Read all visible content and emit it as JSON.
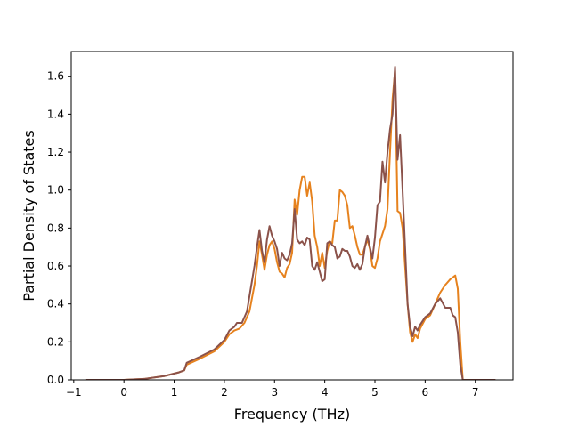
{
  "chart_data": {
    "type": "line",
    "title": "",
    "xlabel": "Frequency (THz)",
    "ylabel": "Partial Density of States",
    "xlim": [
      -1.05,
      7.75
    ],
    "ylim": [
      0.0,
      1.73
    ],
    "xticks": [
      -1,
      0,
      1,
      2,
      3,
      4,
      5,
      6,
      7
    ],
    "xtick_labels": [
      "−1",
      "0",
      "1",
      "2",
      "3",
      "4",
      "5",
      "6",
      "7"
    ],
    "yticks": [
      0.0,
      0.2,
      0.4,
      0.6,
      0.8,
      1.0,
      1.2,
      1.4,
      1.6
    ],
    "ytick_labels": [
      "0.0",
      "0.2",
      "0.4",
      "0.6",
      "0.8",
      "1.0",
      "1.2",
      "1.4",
      "1.6"
    ],
    "grid": false,
    "legend": "none",
    "series": [
      {
        "color": "#e6821e",
        "points": [
          [
            -0.75,
            0.0
          ],
          [
            0.0,
            0.0
          ],
          [
            0.4,
            0.005
          ],
          [
            0.8,
            0.02
          ],
          [
            1.1,
            0.04
          ],
          [
            1.2,
            0.05
          ],
          [
            1.25,
            0.08
          ],
          [
            1.5,
            0.11
          ],
          [
            1.8,
            0.15
          ],
          [
            2.0,
            0.2
          ],
          [
            2.1,
            0.24
          ],
          [
            2.2,
            0.26
          ],
          [
            2.3,
            0.27
          ],
          [
            2.4,
            0.3
          ],
          [
            2.5,
            0.36
          ],
          [
            2.6,
            0.5
          ],
          [
            2.65,
            0.6
          ],
          [
            2.7,
            0.73
          ],
          [
            2.75,
            0.66
          ],
          [
            2.8,
            0.58
          ],
          [
            2.85,
            0.66
          ],
          [
            2.9,
            0.71
          ],
          [
            2.95,
            0.73
          ],
          [
            3.0,
            0.69
          ],
          [
            3.05,
            0.62
          ],
          [
            3.1,
            0.57
          ],
          [
            3.15,
            0.56
          ],
          [
            3.2,
            0.54
          ],
          [
            3.25,
            0.59
          ],
          [
            3.3,
            0.61
          ],
          [
            3.35,
            0.67
          ],
          [
            3.4,
            0.95
          ],
          [
            3.45,
            0.87
          ],
          [
            3.5,
            1.0
          ],
          [
            3.55,
            1.07
          ],
          [
            3.6,
            1.07
          ],
          [
            3.65,
            0.97
          ],
          [
            3.7,
            1.04
          ],
          [
            3.75,
            0.94
          ],
          [
            3.8,
            0.76
          ],
          [
            3.85,
            0.7
          ],
          [
            3.9,
            0.6
          ],
          [
            3.95,
            0.67
          ],
          [
            4.0,
            0.59
          ],
          [
            4.05,
            0.68
          ],
          [
            4.1,
            0.73
          ],
          [
            4.15,
            0.72
          ],
          [
            4.2,
            0.84
          ],
          [
            4.25,
            0.84
          ],
          [
            4.3,
            1.0
          ],
          [
            4.35,
            0.99
          ],
          [
            4.4,
            0.97
          ],
          [
            4.45,
            0.92
          ],
          [
            4.5,
            0.8
          ],
          [
            4.55,
            0.81
          ],
          [
            4.6,
            0.76
          ],
          [
            4.65,
            0.7
          ],
          [
            4.7,
            0.66
          ],
          [
            4.75,
            0.66
          ],
          [
            4.8,
            0.7
          ],
          [
            4.85,
            0.74
          ],
          [
            4.9,
            0.69
          ],
          [
            4.95,
            0.6
          ],
          [
            5.0,
            0.59
          ],
          [
            5.05,
            0.64
          ],
          [
            5.1,
            0.73
          ],
          [
            5.15,
            0.77
          ],
          [
            5.2,
            0.81
          ],
          [
            5.25,
            0.9
          ],
          [
            5.3,
            1.2
          ],
          [
            5.35,
            1.48
          ],
          [
            5.4,
            1.63
          ],
          [
            5.45,
            0.89
          ],
          [
            5.5,
            0.88
          ],
          [
            5.55,
            0.8
          ],
          [
            5.6,
            0.6
          ],
          [
            5.65,
            0.4
          ],
          [
            5.7,
            0.25
          ],
          [
            5.75,
            0.2
          ],
          [
            5.8,
            0.24
          ],
          [
            5.85,
            0.22
          ],
          [
            5.9,
            0.27
          ],
          [
            6.0,
            0.32
          ],
          [
            6.1,
            0.34
          ],
          [
            6.2,
            0.4
          ],
          [
            6.3,
            0.46
          ],
          [
            6.4,
            0.5
          ],
          [
            6.5,
            0.53
          ],
          [
            6.6,
            0.55
          ],
          [
            6.65,
            0.48
          ],
          [
            6.7,
            0.2
          ],
          [
            6.75,
            0.0
          ],
          [
            7.4,
            0.0
          ]
        ]
      },
      {
        "color": "#8b524a",
        "points": [
          [
            -0.75,
            0.0
          ],
          [
            0.0,
            0.0
          ],
          [
            0.4,
            0.005
          ],
          [
            0.8,
            0.02
          ],
          [
            1.1,
            0.04
          ],
          [
            1.2,
            0.05
          ],
          [
            1.25,
            0.09
          ],
          [
            1.5,
            0.12
          ],
          [
            1.8,
            0.16
          ],
          [
            2.0,
            0.21
          ],
          [
            2.1,
            0.26
          ],
          [
            2.2,
            0.28
          ],
          [
            2.25,
            0.3
          ],
          [
            2.35,
            0.3
          ],
          [
            2.45,
            0.36
          ],
          [
            2.55,
            0.52
          ],
          [
            2.6,
            0.6
          ],
          [
            2.65,
            0.7
          ],
          [
            2.7,
            0.79
          ],
          [
            2.75,
            0.68
          ],
          [
            2.8,
            0.62
          ],
          [
            2.85,
            0.74
          ],
          [
            2.9,
            0.81
          ],
          [
            2.95,
            0.76
          ],
          [
            3.0,
            0.73
          ],
          [
            3.05,
            0.69
          ],
          [
            3.1,
            0.6
          ],
          [
            3.15,
            0.67
          ],
          [
            3.2,
            0.64
          ],
          [
            3.25,
            0.63
          ],
          [
            3.3,
            0.66
          ],
          [
            3.35,
            0.72
          ],
          [
            3.4,
            0.9
          ],
          [
            3.45,
            0.74
          ],
          [
            3.5,
            0.72
          ],
          [
            3.55,
            0.73
          ],
          [
            3.6,
            0.71
          ],
          [
            3.65,
            0.75
          ],
          [
            3.7,
            0.74
          ],
          [
            3.75,
            0.6
          ],
          [
            3.8,
            0.58
          ],
          [
            3.85,
            0.62
          ],
          [
            3.9,
            0.57
          ],
          [
            3.95,
            0.52
          ],
          [
            4.0,
            0.53
          ],
          [
            4.05,
            0.72
          ],
          [
            4.1,
            0.73
          ],
          [
            4.15,
            0.71
          ],
          [
            4.2,
            0.7
          ],
          [
            4.25,
            0.64
          ],
          [
            4.3,
            0.65
          ],
          [
            4.35,
            0.69
          ],
          [
            4.4,
            0.68
          ],
          [
            4.45,
            0.68
          ],
          [
            4.5,
            0.65
          ],
          [
            4.55,
            0.6
          ],
          [
            4.6,
            0.59
          ],
          [
            4.65,
            0.61
          ],
          [
            4.7,
            0.58
          ],
          [
            4.75,
            0.61
          ],
          [
            4.8,
            0.7
          ],
          [
            4.85,
            0.76
          ],
          [
            4.9,
            0.7
          ],
          [
            4.95,
            0.64
          ],
          [
            5.0,
            0.75
          ],
          [
            5.05,
            0.92
          ],
          [
            5.1,
            0.94
          ],
          [
            5.15,
            1.15
          ],
          [
            5.2,
            1.04
          ],
          [
            5.25,
            1.2
          ],
          [
            5.3,
            1.32
          ],
          [
            5.35,
            1.4
          ],
          [
            5.4,
            1.65
          ],
          [
            5.45,
            1.16
          ],
          [
            5.5,
            1.29
          ],
          [
            5.55,
            1.0
          ],
          [
            5.6,
            0.7
          ],
          [
            5.65,
            0.4
          ],
          [
            5.7,
            0.28
          ],
          [
            5.75,
            0.23
          ],
          [
            5.8,
            0.28
          ],
          [
            5.85,
            0.26
          ],
          [
            5.9,
            0.29
          ],
          [
            6.0,
            0.33
          ],
          [
            6.1,
            0.35
          ],
          [
            6.2,
            0.4
          ],
          [
            6.3,
            0.43
          ],
          [
            6.4,
            0.38
          ],
          [
            6.5,
            0.38
          ],
          [
            6.55,
            0.34
          ],
          [
            6.6,
            0.33
          ],
          [
            6.65,
            0.25
          ],
          [
            6.7,
            0.08
          ],
          [
            6.75,
            0.0
          ],
          [
            7.4,
            0.0
          ]
        ]
      }
    ]
  }
}
